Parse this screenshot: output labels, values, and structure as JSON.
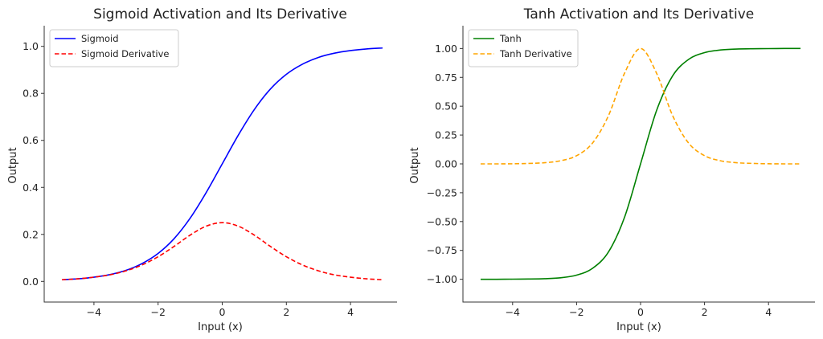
{
  "chart_data": [
    {
      "type": "line",
      "title": "Sigmoid Activation and Its Derivative",
      "xlabel": "Input (x)",
      "ylabel": "Output",
      "xlim": [
        -5,
        5
      ],
      "ylim": [
        -0.04,
        1.04
      ],
      "xticks": [
        -4,
        -2,
        0,
        2,
        4
      ],
      "xtick_labels": [
        "−4",
        "−2",
        "0",
        "2",
        "4"
      ],
      "yticks": [
        0.0,
        0.2,
        0.4,
        0.6,
        0.8,
        1.0
      ],
      "ytick_labels": [
        "0.0",
        "0.2",
        "0.4",
        "0.6",
        "0.8",
        "1.0"
      ],
      "legend": "top-left",
      "grid": false,
      "x": [
        -5,
        -4.5,
        -4,
        -3.5,
        -3,
        -2.5,
        -2,
        -1.5,
        -1,
        -0.5,
        0,
        0.5,
        1,
        1.5,
        2,
        2.5,
        3,
        3.5,
        4,
        4.5,
        5
      ],
      "series": [
        {
          "name": "Sigmoid",
          "color": "#0000ff",
          "dash": "solid",
          "values": [
            0.007,
            0.011,
            0.018,
            0.029,
            0.047,
            0.076,
            0.119,
            0.182,
            0.269,
            0.378,
            0.5,
            0.622,
            0.731,
            0.818,
            0.881,
            0.924,
            0.953,
            0.971,
            0.982,
            0.989,
            0.993
          ]
        },
        {
          "name": "Sigmoid Derivative",
          "color": "#ff0000",
          "dash": "dashed",
          "values": [
            0.007,
            0.011,
            0.018,
            0.028,
            0.045,
            0.07,
            0.105,
            0.149,
            0.197,
            0.235,
            0.25,
            0.235,
            0.197,
            0.149,
            0.105,
            0.07,
            0.045,
            0.028,
            0.018,
            0.011,
            0.007
          ]
        }
      ]
    },
    {
      "type": "line",
      "title": "Tanh Activation and Its Derivative",
      "xlabel": "Input (x)",
      "ylabel": "Output",
      "xlim": [
        -5,
        5
      ],
      "ylim": [
        -1.1,
        1.1
      ],
      "xticks": [
        -4,
        -2,
        0,
        2,
        4
      ],
      "xtick_labels": [
        "−4",
        "−2",
        "0",
        "2",
        "4"
      ],
      "yticks": [
        -1.0,
        -0.75,
        -0.5,
        -0.25,
        0.0,
        0.25,
        0.5,
        0.75,
        1.0
      ],
      "ytick_labels": [
        "−1.00",
        "−0.75",
        "−0.50",
        "−0.25",
        "0.00",
        "0.25",
        "0.50",
        "0.75",
        "1.00"
      ],
      "legend": "top-left",
      "grid": false,
      "x": [
        -5,
        -4.5,
        -4,
        -3.5,
        -3,
        -2.5,
        -2,
        -1.5,
        -1,
        -0.5,
        0,
        0.5,
        1,
        1.5,
        2,
        2.5,
        3,
        3.5,
        4,
        4.5,
        5
      ],
      "series": [
        {
          "name": "Tanh",
          "color": "#008000",
          "dash": "solid",
          "values": [
            -1.0,
            -1.0,
            -0.999,
            -0.998,
            -0.995,
            -0.987,
            -0.964,
            -0.905,
            -0.762,
            -0.462,
            0.0,
            0.462,
            0.762,
            0.905,
            0.964,
            0.987,
            0.995,
            0.998,
            0.999,
            1.0,
            1.0
          ]
        },
        {
          "name": "Tanh Derivative",
          "color": "#ffa500",
          "dash": "dashed",
          "values": [
            0.0,
            0.0,
            0.001,
            0.004,
            0.01,
            0.027,
            0.071,
            0.181,
            0.42,
            0.786,
            1.0,
            0.786,
            0.42,
            0.181,
            0.071,
            0.027,
            0.01,
            0.004,
            0.001,
            0.0,
            0.0
          ]
        }
      ]
    }
  ]
}
